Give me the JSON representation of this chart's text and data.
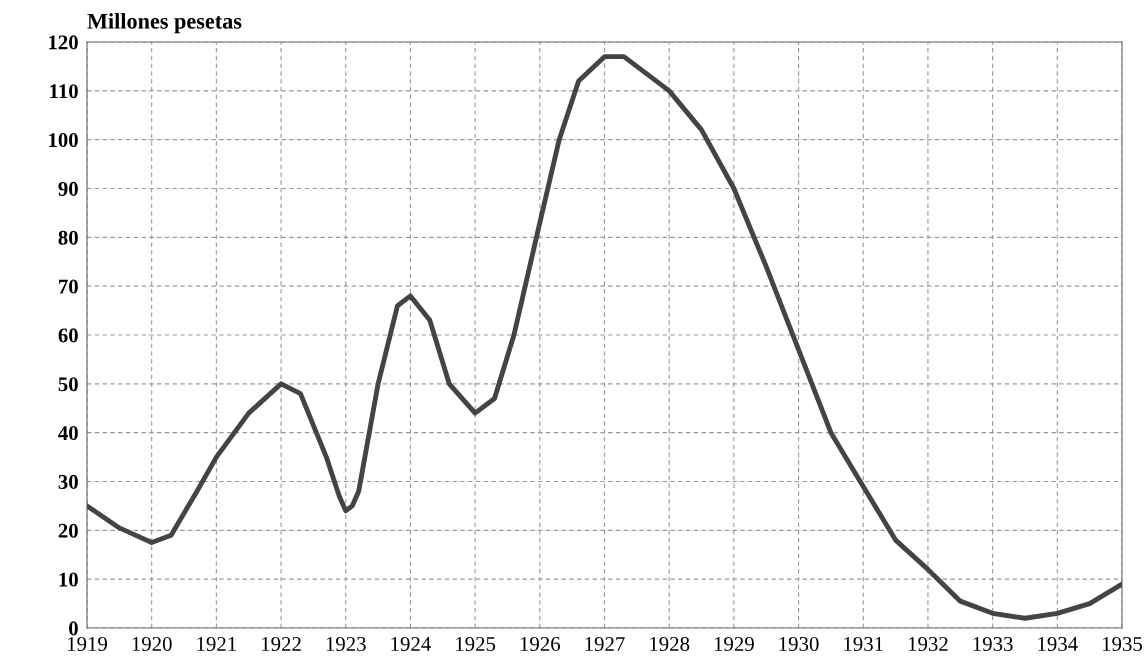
{
  "chart_data": {
    "type": "line",
    "ylabel": "Millones pesetas",
    "x": [
      1919,
      1919.5,
      1920,
      1920.3,
      1920.7,
      1921,
      1921.5,
      1922,
      1922.3,
      1922.7,
      1922.9,
      1923,
      1923.1,
      1923.2,
      1923.5,
      1923.8,
      1924,
      1924.3,
      1924.6,
      1925,
      1925.3,
      1925.6,
      1926,
      1926.3,
      1926.6,
      1927,
      1927.3,
      1927.7,
      1928,
      1928.5,
      1929,
      1929.5,
      1930,
      1930.5,
      1931,
      1931.5,
      1932,
      1932.5,
      1933,
      1933.5,
      1934,
      1934.5,
      1935
    ],
    "series": [
      {
        "color": "#444444",
        "values": [
          25,
          20.5,
          17.5,
          19,
          28,
          35,
          44,
          50,
          48,
          35,
          27,
          24,
          25,
          28,
          50,
          66,
          68,
          63,
          50,
          44,
          47,
          60,
          83,
          100,
          112,
          117,
          117,
          113,
          110,
          102,
          90,
          74,
          57,
          40,
          29,
          18,
          12,
          5.5,
          3,
          2,
          3,
          5,
          9
        ]
      }
    ],
    "xlim": [
      1919,
      1935
    ],
    "xticks": [
      1919,
      1920,
      1921,
      1922,
      1923,
      1924,
      1925,
      1926,
      1927,
      1928,
      1929,
      1930,
      1931,
      1932,
      1933,
      1934,
      1935
    ],
    "ylim": [
      0,
      120
    ],
    "yticks": [
      0,
      10,
      20,
      30,
      40,
      50,
      60,
      70,
      80,
      90,
      100,
      110,
      120
    ],
    "grid": true,
    "marker": "none",
    "line_style": "solid",
    "legend": false
  }
}
